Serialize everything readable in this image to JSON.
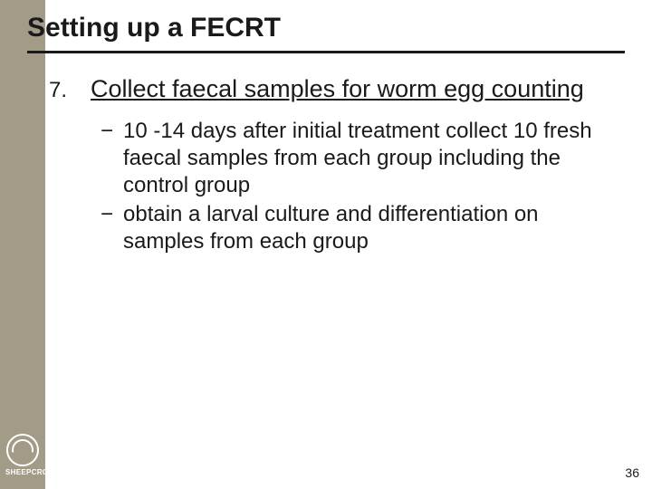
{
  "colors": {
    "sidebar": "#a29b88",
    "text": "#1a1a1a",
    "background": "#ffffff"
  },
  "title": "Setting up a FECRT",
  "item": {
    "number": "7.",
    "heading": "Collect faecal samples for worm egg counting",
    "bullets": [
      "10 -14 days after initial treatment collect 10 fresh faecal samples from each group including the control group",
      "obtain a larval culture and differentiation on samples from each group"
    ]
  },
  "logo_label": "SHEEPCRC",
  "page_number": "36"
}
